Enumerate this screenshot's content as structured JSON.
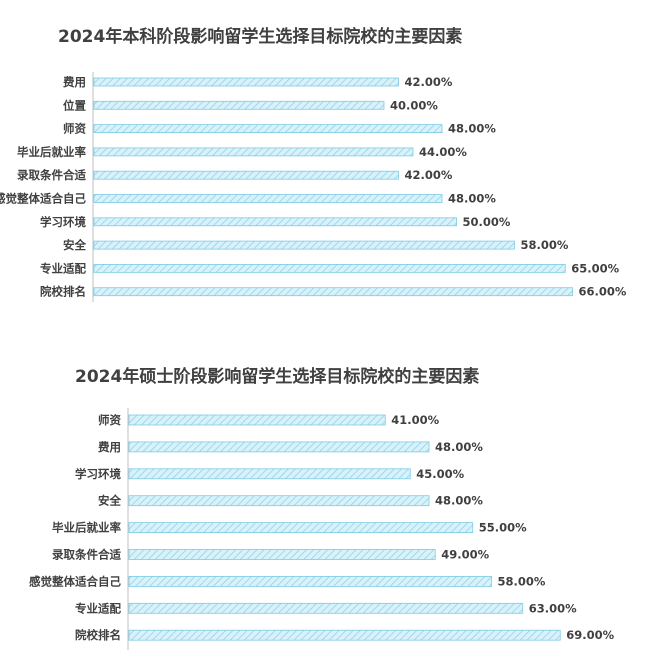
{
  "chart_data": [
    {
      "type": "bar",
      "orientation": "horizontal",
      "title": "2024年本科阶段影响留学生选择目标院校的主要因素",
      "categories": [
        "费用",
        "位置",
        "师资",
        "毕业后就业率",
        "录取条件合适",
        "感觉整体适合自己",
        "学习环境",
        "安全",
        "专业适配",
        "院校排名"
      ],
      "values": [
        42,
        40,
        48,
        44,
        42,
        48,
        50,
        58,
        65,
        66
      ],
      "value_labels": [
        "42.00%",
        "40.00%",
        "48.00%",
        "44.00%",
        "42.00%",
        "48.00%",
        "50.00%",
        "58.00%",
        "65.00%",
        "66.00%"
      ],
      "unit": "%",
      "xlim": [
        0,
        70
      ],
      "grid": false,
      "legend": "none",
      "bar_fill": "#d6f0f8",
      "bar_stroke": "#7ecbe4"
    },
    {
      "type": "bar",
      "orientation": "horizontal",
      "title": "2024年硕士阶段影响留学生选择目标院校的主要因素",
      "categories": [
        "师资",
        "费用",
        "学习环境",
        "安全",
        "毕业后就业率",
        "录取条件合适",
        "感觉整体适合自己",
        "专业适配",
        "院校排名"
      ],
      "values": [
        41,
        48,
        45,
        48,
        55,
        49,
        58,
        63,
        69
      ],
      "value_labels": [
        "41.00%",
        "48.00%",
        "45.00%",
        "48.00%",
        "55.00%",
        "49.00%",
        "58.00%",
        "63.00%",
        "69.00%"
      ],
      "unit": "%",
      "xlim": [
        0,
        70
      ],
      "grid": false,
      "legend": "none",
      "bar_fill": "#d6f0f8",
      "bar_stroke": "#7ecbe4"
    }
  ]
}
